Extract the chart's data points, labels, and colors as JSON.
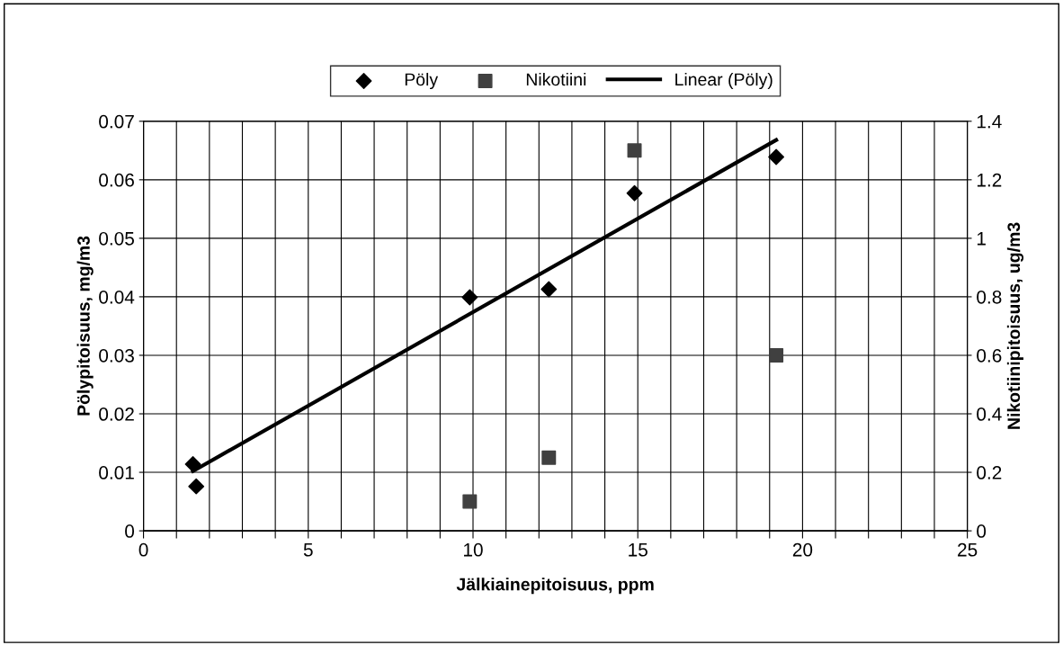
{
  "chart_data": {
    "type": "scatter",
    "xlabel": "Jälkiainepitoisuus, ppm",
    "ylabel": "Pölypitoisuus, mg/m3",
    "y2label": "Nikotiinipitoisuus, ug/m3",
    "xlim": [
      0,
      25
    ],
    "xticks": [
      0,
      {
        "value": 1,
        "label": null
      },
      {
        "value": 2,
        "label": null
      },
      {
        "value": 3,
        "label": null
      },
      {
        "value": 4,
        "label": null
      },
      5,
      {
        "value": 6,
        "label": null
      },
      {
        "value": 7,
        "label": null
      },
      {
        "value": 8,
        "label": null
      },
      {
        "value": 9,
        "label": null
      },
      10,
      {
        "value": 11,
        "label": null
      },
      {
        "value": 12,
        "label": null
      },
      {
        "value": 13,
        "label": null
      },
      {
        "value": 14,
        "label": null
      },
      15,
      {
        "value": 16,
        "label": null
      },
      {
        "value": 17,
        "label": null
      },
      {
        "value": 18,
        "label": null
      },
      {
        "value": 19,
        "label": null
      },
      20,
      {
        "value": 21,
        "label": null
      },
      {
        "value": 22,
        "label": null
      },
      {
        "value": 23,
        "label": null
      },
      {
        "value": 24,
        "label": null
      },
      25
    ],
    "ylim": [
      0,
      0.07
    ],
    "yticks": [
      0,
      0.01,
      0.02,
      0.03,
      0.04,
      0.05,
      0.06,
      0.07
    ],
    "y2lim": [
      0,
      1.4
    ],
    "y2ticks": [
      0,
      0.2,
      0.4,
      0.6,
      0.8,
      1,
      1.2,
      1.4
    ],
    "grid": true,
    "legend": "top",
    "series": [
      {
        "name": "Pöly",
        "marker": "diamond",
        "color": "#000000",
        "x": [
          1.5,
          1.6,
          9.9,
          12.3,
          14.9,
          19.2
        ],
        "values": [
          0.0114,
          0.0076,
          0.0399,
          0.0413,
          0.0577,
          0.0639
        ]
      },
      {
        "name": "Nikotiini",
        "marker": "square",
        "color": "#404040",
        "axis": "y2",
        "x": [
          9.9,
          12.3,
          14.9,
          19.2
        ],
        "values": [
          0.1,
          0.25,
          1.3,
          0.6
        ]
      },
      {
        "name": "Linear (Pöly)",
        "type": "line",
        "marker": "none",
        "line_style": "solid",
        "color": "#000000",
        "x": [
          1.5,
          19.2
        ],
        "values": [
          0.0102,
          0.0668
        ]
      }
    ]
  }
}
